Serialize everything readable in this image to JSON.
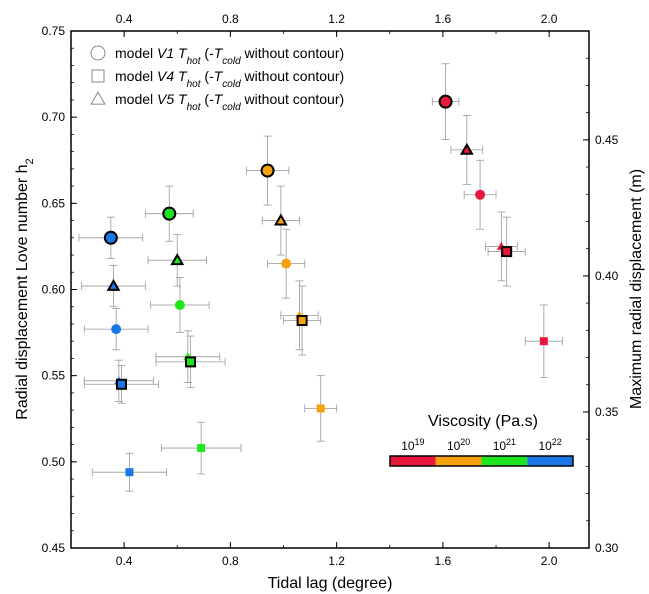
{
  "chart_data": {
    "type": "scatter",
    "xlabel": "Tidal lag (degree)",
    "ylabel": "Radial displacement Love number h",
    "ylabel_sub": "2",
    "y2label": "Maximum radial displacement (m)",
    "xlim": [
      0.2,
      2.15
    ],
    "ylim": [
      0.45,
      0.75
    ],
    "y2lim": [
      0.3,
      0.49
    ],
    "xticks": [
      "0.4",
      "0.8",
      "1.2",
      "1.6",
      "2.0"
    ],
    "xtick_values": [
      0.4,
      0.8,
      1.2,
      1.6,
      2.0
    ],
    "yticks": [
      "0.45",
      "0.50",
      "0.55",
      "0.60",
      "0.65",
      "0.70",
      "0.75"
    ],
    "ytick_values": [
      0.45,
      0.5,
      0.55,
      0.6,
      0.65,
      0.7,
      0.75
    ],
    "y2ticks": [
      "0.30",
      "0.35",
      "0.40",
      "0.45"
    ],
    "y2tick_values": [
      0.3,
      0.35,
      0.4,
      0.45
    ],
    "legend": [
      {
        "marker": "circle",
        "pre": "model ",
        "model": "V1",
        "T": "T",
        "sub": "hot",
        "mid": " (-",
        "T2": "T",
        "sub2": "cold",
        "post": " without contour)"
      },
      {
        "marker": "square",
        "pre": "model ",
        "model": "V4",
        "T": "T",
        "sub": "hot",
        "mid": " (-",
        "T2": "T",
        "sub2": "cold",
        "post": " without contour)"
      },
      {
        "marker": "triangle",
        "pre": "model ",
        "model": "V5",
        "T": "T",
        "sub": "hot",
        "mid": " (-",
        "T2": "T",
        "sub2": "cold",
        "post": " without contour)"
      }
    ],
    "colorbar": {
      "title": "Viscosity (Pa.s)",
      "labels": [
        {
          "base": "10",
          "exp": "19"
        },
        {
          "base": "10",
          "exp": "20"
        },
        {
          "base": "10",
          "exp": "21"
        },
        {
          "base": "10",
          "exp": "22"
        }
      ],
      "colors": [
        "#e8173c",
        "#f5a10b",
        "#1ee51e",
        "#1a78e6"
      ]
    },
    "points": [
      {
        "model": "V1",
        "shape": "circle",
        "contour": true,
        "color": "#e8173c",
        "x": 1.61,
        "y": 0.709,
        "xerr": 0.05,
        "yerr": 0.022
      },
      {
        "model": "V1",
        "shape": "circle",
        "contour": false,
        "color": "#e8173c",
        "x": 1.74,
        "y": 0.655,
        "xerr": 0.06,
        "yerr": 0.02
      },
      {
        "model": "V5",
        "shape": "triangle",
        "contour": true,
        "color": "#e8173c",
        "x": 1.69,
        "y": 0.681,
        "xerr": 0.06,
        "yerr": 0.02
      },
      {
        "model": "V5",
        "shape": "triangle",
        "contour": false,
        "color": "#e8173c",
        "x": 1.82,
        "y": 0.625,
        "xerr": 0.06,
        "yerr": 0.02
      },
      {
        "model": "V4",
        "shape": "square",
        "contour": true,
        "color": "#e8173c",
        "x": 1.84,
        "y": 0.622,
        "xerr": 0.07,
        "yerr": 0.02
      },
      {
        "model": "V4",
        "shape": "square",
        "contour": false,
        "color": "#e8173c",
        "x": 1.98,
        "y": 0.57,
        "xerr": 0.07,
        "yerr": 0.021
      },
      {
        "model": "V1",
        "shape": "circle",
        "contour": true,
        "color": "#f5a10b",
        "x": 0.94,
        "y": 0.669,
        "xerr": 0.08,
        "yerr": 0.02
      },
      {
        "model": "V1",
        "shape": "circle",
        "contour": false,
        "color": "#f5a10b",
        "x": 1.01,
        "y": 0.615,
        "xerr": 0.07,
        "yerr": 0.02
      },
      {
        "model": "V5",
        "shape": "triangle",
        "contour": true,
        "color": "#f5a10b",
        "x": 0.99,
        "y": 0.64,
        "xerr": 0.07,
        "yerr": 0.02
      },
      {
        "model": "V5",
        "shape": "triangle",
        "contour": false,
        "color": "#f5a10b",
        "x": 1.06,
        "y": 0.585,
        "xerr": 0.07,
        "yerr": 0.02
      },
      {
        "model": "V4",
        "shape": "square",
        "contour": true,
        "color": "#f5a10b",
        "x": 1.07,
        "y": 0.582,
        "xerr": 0.07,
        "yerr": 0.02
      },
      {
        "model": "V4",
        "shape": "square",
        "contour": false,
        "color": "#f5a10b",
        "x": 1.14,
        "y": 0.531,
        "xerr": 0.06,
        "yerr": 0.019
      },
      {
        "model": "V1",
        "shape": "circle",
        "contour": true,
        "color": "#1ee51e",
        "x": 0.57,
        "y": 0.644,
        "xerr": 0.09,
        "yerr": 0.016
      },
      {
        "model": "V1",
        "shape": "circle",
        "contour": false,
        "color": "#1ee51e",
        "x": 0.61,
        "y": 0.591,
        "xerr": 0.11,
        "yerr": 0.016
      },
      {
        "model": "V5",
        "shape": "triangle",
        "contour": true,
        "color": "#1ee51e",
        "x": 0.6,
        "y": 0.617,
        "xerr": 0.11,
        "yerr": 0.015
      },
      {
        "model": "V5",
        "shape": "triangle",
        "contour": false,
        "color": "#1ee51e",
        "x": 0.64,
        "y": 0.561,
        "xerr": 0.12,
        "yerr": 0.015
      },
      {
        "model": "V4",
        "shape": "square",
        "contour": true,
        "color": "#1ee51e",
        "x": 0.65,
        "y": 0.558,
        "xerr": 0.13,
        "yerr": 0.015
      },
      {
        "model": "V4",
        "shape": "square",
        "contour": false,
        "color": "#1ee51e",
        "x": 0.69,
        "y": 0.508,
        "xerr": 0.15,
        "yerr": 0.015
      },
      {
        "model": "V1",
        "shape": "circle",
        "contour": true,
        "color": "#1a78e6",
        "x": 0.35,
        "y": 0.63,
        "xerr": 0.12,
        "yerr": 0.012
      },
      {
        "model": "V1",
        "shape": "circle",
        "contour": false,
        "color": "#1a78e6",
        "x": 0.37,
        "y": 0.577,
        "xerr": 0.12,
        "yerr": 0.012
      },
      {
        "model": "V5",
        "shape": "triangle",
        "contour": true,
        "color": "#1a78e6",
        "x": 0.36,
        "y": 0.602,
        "xerr": 0.12,
        "yerr": 0.012
      },
      {
        "model": "V5",
        "shape": "triangle",
        "contour": false,
        "color": "#1a78e6",
        "x": 0.38,
        "y": 0.547,
        "xerr": 0.13,
        "yerr": 0.012
      },
      {
        "model": "V4",
        "shape": "square",
        "contour": true,
        "color": "#1a78e6",
        "x": 0.39,
        "y": 0.545,
        "xerr": 0.14,
        "yerr": 0.011
      },
      {
        "model": "V4",
        "shape": "square",
        "contour": false,
        "color": "#1a78e6",
        "x": 0.42,
        "y": 0.494,
        "xerr": 0.14,
        "yerr": 0.011
      }
    ]
  }
}
